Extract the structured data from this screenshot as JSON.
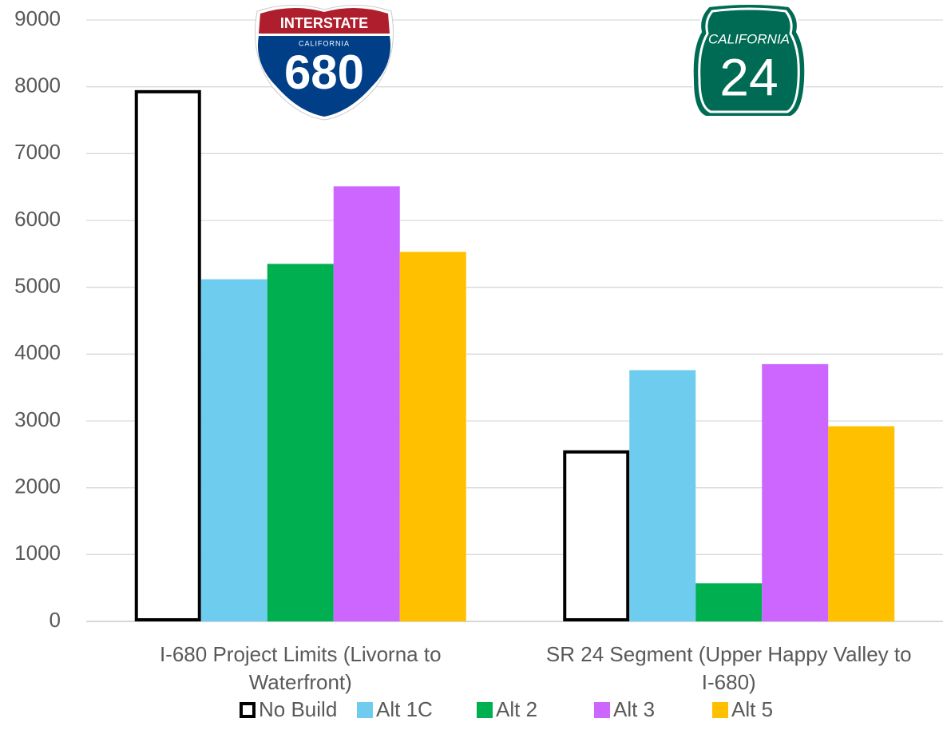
{
  "chart_data": {
    "type": "bar",
    "categories": [
      "I-680 Project Limits (Livorna to Waterfront)",
      "SR 24 Segment (Upper Happy Valley to I-680)"
    ],
    "series": [
      {
        "name": "No Build",
        "color": "#ffffff",
        "values": [
          7950,
          2560
        ]
      },
      {
        "name": "Alt 1C",
        "color": "#6ecdee",
        "values": [
          5120,
          3760
        ]
      },
      {
        "name": "Alt 2",
        "color": "#00b050",
        "values": [
          5350,
          570
        ]
      },
      {
        "name": "Alt 3",
        "color": "#cc66ff",
        "values": [
          6510,
          3850
        ]
      },
      {
        "name": "Alt 5",
        "color": "#ffc000",
        "values": [
          5530,
          2920
        ]
      }
    ],
    "ylim": [
      0,
      9000
    ],
    "yticks": [
      0,
      1000,
      2000,
      3000,
      4000,
      5000,
      6000,
      7000,
      8000,
      9000
    ],
    "grid": true,
    "legend": "bottom",
    "shields": [
      {
        "top": "INTERSTATE",
        "state": "CALIFORNIA",
        "number": "680"
      },
      {
        "state": "CALIFORNIA",
        "number": "24"
      }
    ]
  }
}
